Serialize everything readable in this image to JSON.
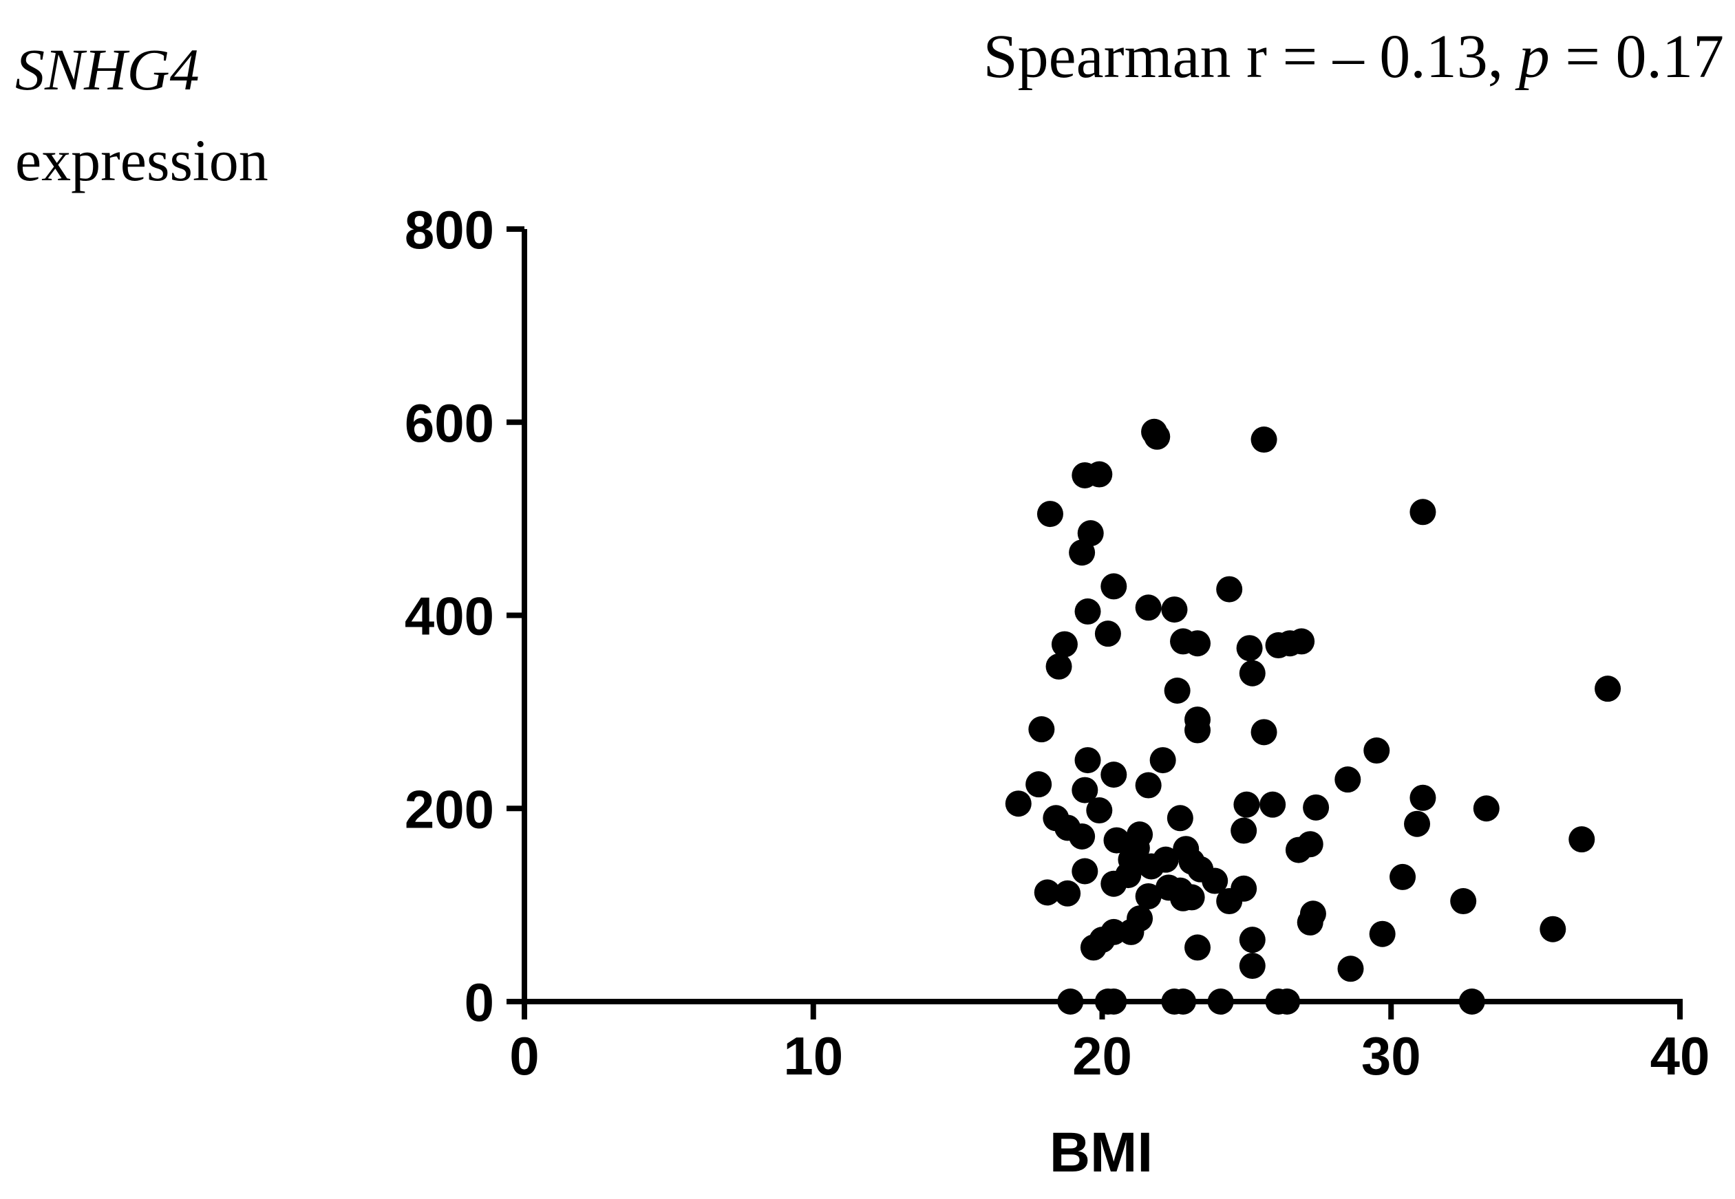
{
  "chart_data": {
    "type": "scatter",
    "title": "Spearman r = – 0.13, p = 0.17",
    "title_parts": {
      "stat_prefix": "Spearman r = – 0.13, ",
      "p_symbol": "p",
      "p_suffix": " = 0.17"
    },
    "ylabel": {
      "gene": "SNHG4",
      "word": "expression"
    },
    "xlabel": "BMI",
    "xlim": [
      0,
      40
    ],
    "ylim": [
      0,
      800
    ],
    "x_ticks": [
      0,
      10,
      20,
      30,
      40
    ],
    "y_ticks": [
      0,
      200,
      400,
      600,
      800
    ],
    "x_tick_labels": [
      "0",
      "10",
      "20",
      "30",
      "40"
    ],
    "y_tick_labels": [
      "0",
      "200",
      "400",
      "600",
      "800"
    ],
    "grid": false,
    "marker_color": "#000000",
    "points": [
      {
        "x": 21.8,
        "y": 590
      },
      {
        "x": 21.9,
        "y": 585
      },
      {
        "x": 25.6,
        "y": 582
      },
      {
        "x": 19.4,
        "y": 545
      },
      {
        "x": 19.9,
        "y": 546
      },
      {
        "x": 18.2,
        "y": 505
      },
      {
        "x": 31.1,
        "y": 507
      },
      {
        "x": 19.6,
        "y": 485
      },
      {
        "x": 19.3,
        "y": 465
      },
      {
        "x": 20.4,
        "y": 430
      },
      {
        "x": 24.4,
        "y": 427
      },
      {
        "x": 21.6,
        "y": 408
      },
      {
        "x": 22.5,
        "y": 406
      },
      {
        "x": 19.5,
        "y": 404
      },
      {
        "x": 20.2,
        "y": 381
      },
      {
        "x": 22.8,
        "y": 373
      },
      {
        "x": 23.3,
        "y": 371
      },
      {
        "x": 18.7,
        "y": 370
      },
      {
        "x": 25.1,
        "y": 366
      },
      {
        "x": 26.1,
        "y": 369
      },
      {
        "x": 26.5,
        "y": 371
      },
      {
        "x": 26.9,
        "y": 373
      },
      {
        "x": 18.5,
        "y": 347
      },
      {
        "x": 25.2,
        "y": 340
      },
      {
        "x": 37.5,
        "y": 324
      },
      {
        "x": 22.6,
        "y": 322
      },
      {
        "x": 23.3,
        "y": 292
      },
      {
        "x": 23.3,
        "y": 281
      },
      {
        "x": 25.6,
        "y": 279
      },
      {
        "x": 17.9,
        "y": 282
      },
      {
        "x": 29.5,
        "y": 260
      },
      {
        "x": 19.5,
        "y": 250
      },
      {
        "x": 22.1,
        "y": 250
      },
      {
        "x": 20.4,
        "y": 235
      },
      {
        "x": 28.5,
        "y": 230
      },
      {
        "x": 17.8,
        "y": 225
      },
      {
        "x": 21.6,
        "y": 224
      },
      {
        "x": 19.4,
        "y": 219
      },
      {
        "x": 31.1,
        "y": 211
      },
      {
        "x": 17.1,
        "y": 205
      },
      {
        "x": 25.0,
        "y": 204
      },
      {
        "x": 25.9,
        "y": 204
      },
      {
        "x": 27.4,
        "y": 201
      },
      {
        "x": 33.3,
        "y": 200
      },
      {
        "x": 19.9,
        "y": 198
      },
      {
        "x": 18.4,
        "y": 190
      },
      {
        "x": 22.7,
        "y": 190
      },
      {
        "x": 18.8,
        "y": 180
      },
      {
        "x": 30.9,
        "y": 184
      },
      {
        "x": 24.9,
        "y": 177
      },
      {
        "x": 19.3,
        "y": 171
      },
      {
        "x": 21.3,
        "y": 173
      },
      {
        "x": 20.5,
        "y": 167
      },
      {
        "x": 36.6,
        "y": 168
      },
      {
        "x": 27.2,
        "y": 163
      },
      {
        "x": 26.8,
        "y": 157
      },
      {
        "x": 21.2,
        "y": 159
      },
      {
        "x": 22.9,
        "y": 158
      },
      {
        "x": 21.0,
        "y": 147
      },
      {
        "x": 22.2,
        "y": 147
      },
      {
        "x": 21.7,
        "y": 140
      },
      {
        "x": 23.1,
        "y": 145
      },
      {
        "x": 23.4,
        "y": 137
      },
      {
        "x": 19.4,
        "y": 135
      },
      {
        "x": 20.9,
        "y": 131
      },
      {
        "x": 30.4,
        "y": 129
      },
      {
        "x": 23.9,
        "y": 125
      },
      {
        "x": 20.4,
        "y": 122
      },
      {
        "x": 22.3,
        "y": 118
      },
      {
        "x": 22.7,
        "y": 115
      },
      {
        "x": 24.9,
        "y": 117
      },
      {
        "x": 18.1,
        "y": 113
      },
      {
        "x": 18.8,
        "y": 112
      },
      {
        "x": 21.6,
        "y": 109
      },
      {
        "x": 22.8,
        "y": 107
      },
      {
        "x": 23.1,
        "y": 108
      },
      {
        "x": 24.4,
        "y": 104
      },
      {
        "x": 32.5,
        "y": 104
      },
      {
        "x": 27.3,
        "y": 91
      },
      {
        "x": 21.3,
        "y": 86
      },
      {
        "x": 27.2,
        "y": 82
      },
      {
        "x": 35.6,
        "y": 75
      },
      {
        "x": 20.4,
        "y": 72
      },
      {
        "x": 21.0,
        "y": 72
      },
      {
        "x": 29.7,
        "y": 70
      },
      {
        "x": 20.0,
        "y": 64
      },
      {
        "x": 25.2,
        "y": 64
      },
      {
        "x": 19.7,
        "y": 56
      },
      {
        "x": 23.3,
        "y": 56
      },
      {
        "x": 25.2,
        "y": 37
      },
      {
        "x": 28.6,
        "y": 34
      },
      {
        "x": 18.9,
        "y": 0
      },
      {
        "x": 20.2,
        "y": 0
      },
      {
        "x": 20.4,
        "y": 0
      },
      {
        "x": 22.5,
        "y": 0
      },
      {
        "x": 22.8,
        "y": 0
      },
      {
        "x": 24.1,
        "y": 0
      },
      {
        "x": 26.1,
        "y": 0
      },
      {
        "x": 26.4,
        "y": 0
      },
      {
        "x": 32.8,
        "y": 0
      }
    ]
  }
}
